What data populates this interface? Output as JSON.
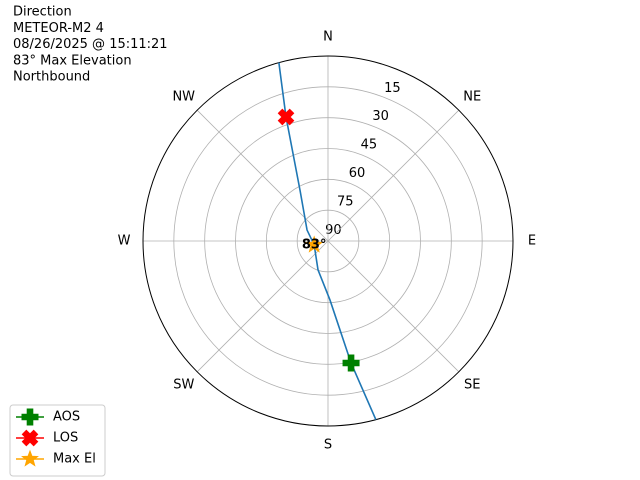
{
  "chart_data": {
    "type": "polar",
    "title_lines": [
      "Direction",
      "METEOR-M2 4",
      "08/26/2025 @ 15:11:21",
      "83° Max Elevation",
      "Northbound"
    ],
    "xlim": [
      0,
      360
    ],
    "xticks": [
      {
        "value": 0,
        "label": "N"
      },
      {
        "value": 45,
        "label": "NE"
      },
      {
        "value": 90,
        "label": "E"
      },
      {
        "value": 135,
        "label": "SE"
      },
      {
        "value": 180,
        "label": "S"
      },
      {
        "value": 225,
        "label": "SW"
      },
      {
        "value": 270,
        "label": "W"
      },
      {
        "value": 315,
        "label": "NW"
      }
    ],
    "ylim": [
      90,
      0
    ],
    "yticks": [
      90,
      75,
      60,
      45,
      30,
      15
    ],
    "grid": true,
    "legend": "lower left",
    "series": [
      {
        "color": "#1f77b4",
        "marker": "line",
        "x": [
          165.0,
          169.3,
          178.1,
          199.0,
          254.0,
          297.6,
          331.2,
          341.3,
          344.6
        ],
        "values": [
          0,
          29.6,
          61.3,
          75.1,
          83,
          78.5,
          61.7,
          26.3,
          0
        ]
      },
      {
        "name": "AOS",
        "color": "#008000",
        "marker": "plus",
        "x": [
          169.3
        ],
        "values": [
          29.6
        ]
      },
      {
        "name": "LOS",
        "color": "#ff0000",
        "marker": "x",
        "x": [
          341.3
        ],
        "values": [
          26.3
        ]
      },
      {
        "name": "Max El",
        "color": "#ffa500",
        "marker": "star",
        "x": [
          254.0
        ],
        "values": [
          83
        ],
        "value_labels": [
          "83°"
        ]
      }
    ]
  }
}
